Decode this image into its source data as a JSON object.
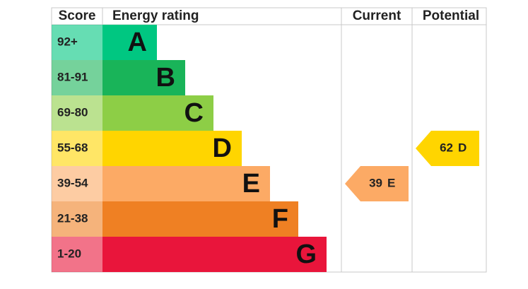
{
  "chart_data": {
    "type": "epc",
    "headers": {
      "score": "Score",
      "rating": "Energy rating",
      "current": "Current",
      "potential": "Potential"
    },
    "bands": [
      {
        "score": "92+",
        "letter": "A",
        "color": "#00c781"
      },
      {
        "score": "81-91",
        "letter": "B",
        "color": "#19b459"
      },
      {
        "score": "69-80",
        "letter": "C",
        "color": "#8dce46"
      },
      {
        "score": "55-68",
        "letter": "D",
        "color": "#ffd500"
      },
      {
        "score": "39-54",
        "letter": "E",
        "color": "#fcaa65"
      },
      {
        "score": "21-38",
        "letter": "F",
        "color": "#ef8023"
      },
      {
        "score": "1-20",
        "letter": "G",
        "color": "#e9153b"
      }
    ],
    "current": {
      "value": 39,
      "letter": "E"
    },
    "potential": {
      "value": 62,
      "letter": "D"
    }
  }
}
